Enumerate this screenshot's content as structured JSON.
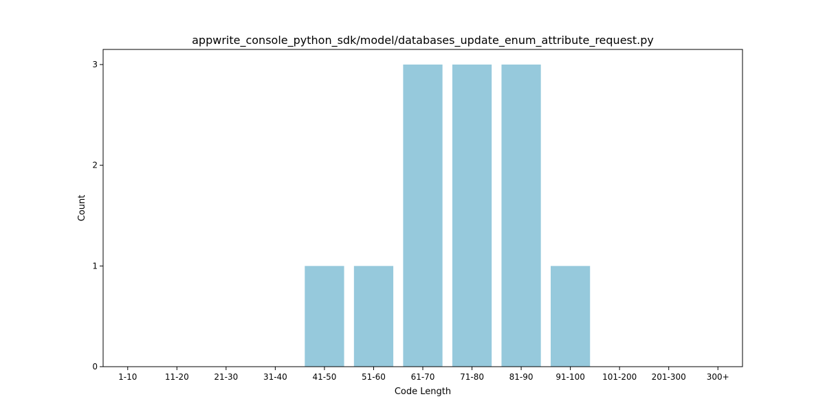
{
  "chart_data": {
    "type": "bar",
    "title": "appwrite_console_python_sdk/model/databases_update_enum_attribute_request.py",
    "xlabel": "Code Length",
    "ylabel": "Count",
    "categories": [
      "1-10",
      "11-20",
      "21-30",
      "31-40",
      "41-50",
      "51-60",
      "61-70",
      "71-80",
      "81-90",
      "91-100",
      "101-200",
      "201-300",
      "300+"
    ],
    "values": [
      0,
      0,
      0,
      0,
      1,
      1,
      3,
      3,
      3,
      1,
      0,
      0,
      0
    ],
    "ylim": [
      0,
      3.15
    ],
    "yticks": [
      0,
      1,
      2,
      3
    ],
    "grid": false,
    "bar_color": "#96c9dc"
  }
}
